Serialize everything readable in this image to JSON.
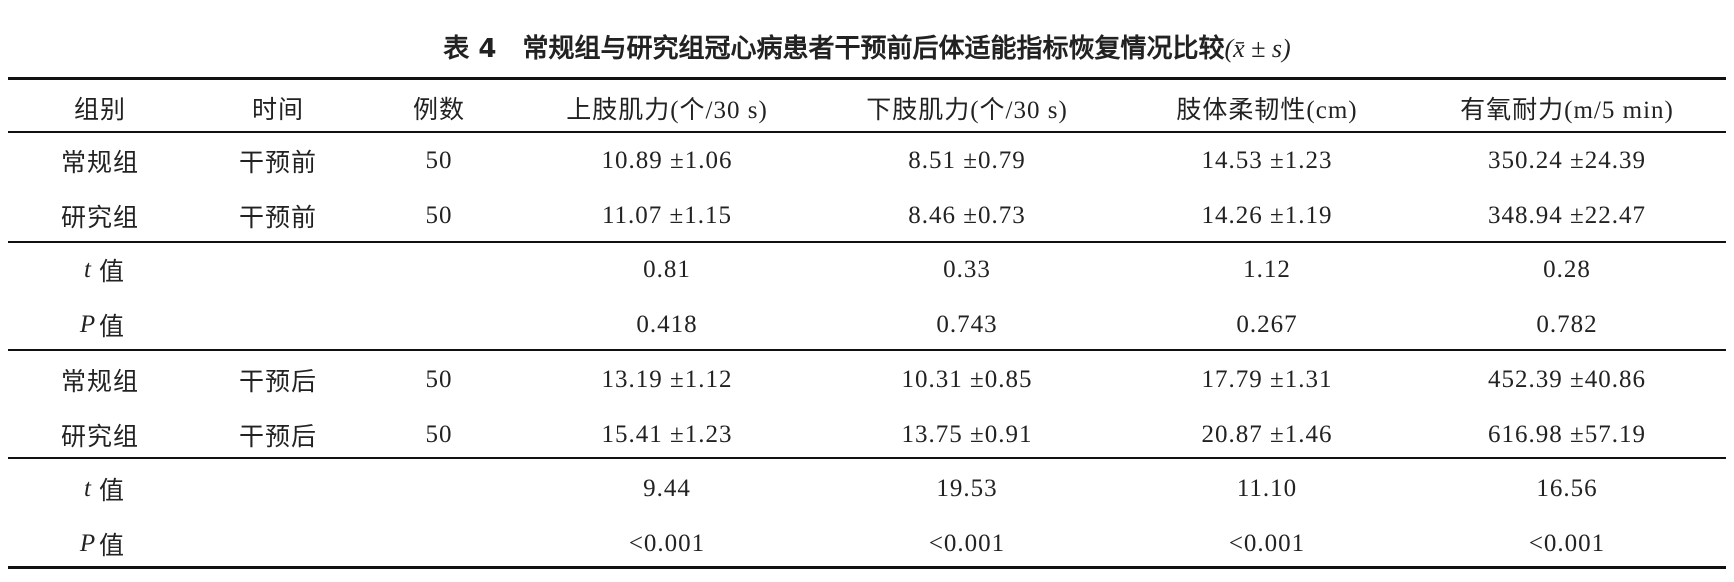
{
  "title": {
    "number": "表 4",
    "text": "常规组与研究组冠心病患者干预前后体适能指标恢复情况比较",
    "stat": "(x̄ ± s)"
  },
  "table": {
    "headers": [
      "组别",
      "时间",
      "例数",
      "上肢肌力(个/30 s)",
      "下肢肌力(个/30 s)",
      "肢体柔韧性(cm)",
      "有氧耐力(m/5 min)"
    ],
    "rows": [
      {
        "group": "常规组",
        "time": "干预前",
        "n": 50,
        "values": [
          "10.89 ±1.06",
          "8.51 ±0.79",
          "14.53 ±1.23",
          "350.24 ±24.39"
        ]
      },
      {
        "group": "研究组",
        "time": "干预前",
        "n": 50,
        "values": [
          "11.07 ±1.15",
          "8.46 ±0.73",
          "14.26 ±1.19",
          "348.94 ±22.47"
        ]
      },
      {
        "stat": {
          "var": "t",
          "label": "值"
        },
        "values": [
          0.81,
          0.33,
          1.12,
          0.28
        ]
      },
      {
        "stat": {
          "var": "P",
          "label": "值"
        },
        "values": [
          0.418,
          0.743,
          0.267,
          0.782
        ]
      },
      {
        "group": "常规组",
        "time": "干预后",
        "n": 50,
        "values": [
          "13.19 ±1.12",
          "10.31 ±0.85",
          "17.79 ±1.31",
          "452.39 ±40.86"
        ]
      },
      {
        "group": "研究组",
        "time": "干预后",
        "n": 50,
        "values": [
          "15.41 ±1.23",
          "13.75 ±0.91",
          "20.87 ±1.46",
          "616.98 ±57.19"
        ]
      },
      {
        "stat": {
          "var": "t",
          "label": "值"
        },
        "values": [
          "9.44",
          "19.53",
          "11.10",
          "16.56"
        ]
      },
      {
        "stat": {
          "var": "P",
          "label": "值"
        },
        "values": [
          "<0.001",
          "<0.001",
          "<0.001",
          "<0.001"
        ]
      }
    ]
  }
}
